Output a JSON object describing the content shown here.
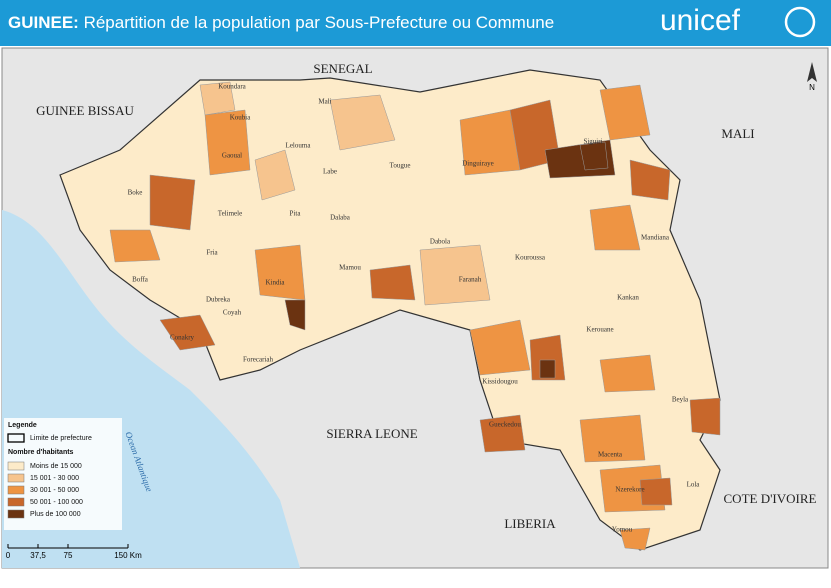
{
  "header": {
    "title_bold": "GUINEE:",
    "title": "Répartition de la population par Sous-Prefecture ou Commune",
    "logo": "unicef"
  },
  "countries": [
    "SENEGAL",
    "GUINEE BISSAU",
    "MALI",
    "SIERRA LEONE",
    "LIBERIA",
    "COTE D'IVOIRE"
  ],
  "ocean": "Ocean Atlantique",
  "north": "N",
  "prefectures": [
    "Koundara",
    "Mali",
    "Koubia",
    "Labe",
    "Tougue",
    "Dinguiraye",
    "Siguiri",
    "Gaoual",
    "Lelouma",
    "Pita",
    "Dalaba",
    "Mamou",
    "Kouroussa",
    "Kankan",
    "Mandiana",
    "Boke",
    "Boffa",
    "Fria",
    "Telimele",
    "Kindia",
    "Dubreka",
    "Coyah",
    "Forecariah",
    "Conakry",
    "Faranah",
    "Dabola",
    "Kissidougou",
    "Kerouane",
    "Beyla",
    "Macenta",
    "Gueckedou",
    "Yomou",
    "Nzerekore",
    "Lola"
  ],
  "legend": {
    "title": "Legende",
    "boundary": "Limite de prefecture",
    "subtitle": "Nombre d'habitants",
    "classes": [
      {
        "label": "Moins de 15 000",
        "color": "#fdebc9"
      },
      {
        "label": "15 001 - 30 000",
        "color": "#f6c48e"
      },
      {
        "label": "30 001 - 50 000",
        "color": "#ee9443"
      },
      {
        "label": "50 001 - 100 000",
        "color": "#c8672b"
      },
      {
        "label": "Plus de 100 000",
        "color": "#6b3311"
      }
    ]
  },
  "scale": [
    "0",
    "37,5",
    "75",
    "150 Km"
  ]
}
